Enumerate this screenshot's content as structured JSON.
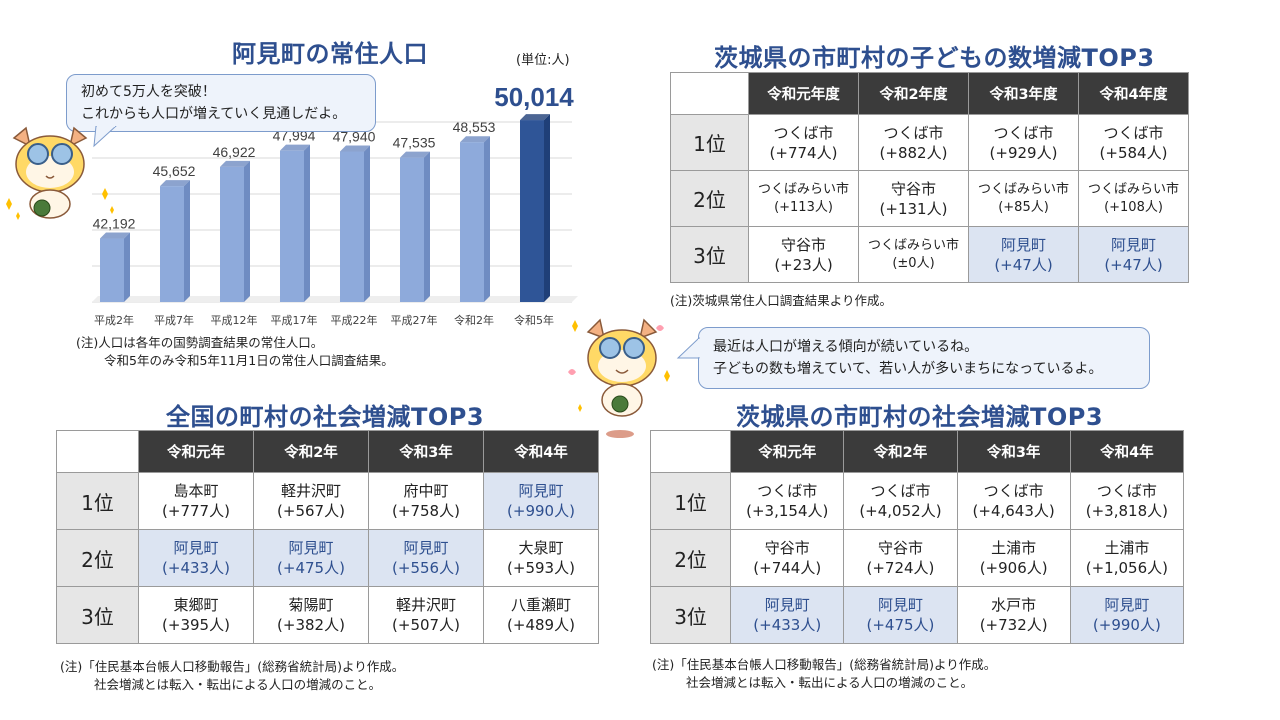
{
  "chart_data": {
    "type": "bar",
    "title": "阿見町の常住人口",
    "unit": "(単位:人)",
    "categories": [
      "平成2年",
      "平成7年",
      "平成12年",
      "平成17年",
      "平成22年",
      "平成27年",
      "令和2年",
      "令和5年"
    ],
    "values": [
      42192,
      45652,
      46922,
      47994,
      47940,
      47535,
      48553,
      50014
    ],
    "value_labels": [
      "42,192",
      "45,652",
      "46,922",
      "47,994",
      "47,940",
      "47,535",
      "48,553",
      "50,014"
    ],
    "highlight_index": 7,
    "colors": {
      "bar": "#8eaadb",
      "bar_side": "#6f8cc2",
      "highlight": "#2f5597",
      "highlight_side": "#1f3f78",
      "grid": "#d9d9d9"
    },
    "ylim": [
      38000,
      52000
    ],
    "notes": [
      "(注)人口は各年の国勢調査結果の常住人口。",
      "令和5年のみ令和5年11月1日の常住人口調査結果。"
    ]
  },
  "bubble1": {
    "line1": "初めて5万人を突破！",
    "line2": "これからも人口が増えていく見通しだよ。"
  },
  "bubble2": {
    "line1": "最近は人口が増える傾向が続いているね。",
    "line2": "子どもの数も増えていて、若い人が多いまちになっているよ。"
  },
  "table_children": {
    "title": "茨城県の市町村の子どもの数増減TOP3",
    "headers": [
      "令和元年度",
      "令和2年度",
      "令和3年度",
      "令和4年度"
    ],
    "rows": [
      {
        "rank": "1位",
        "cells": [
          [
            "つくば市",
            "(+774人)",
            false,
            false
          ],
          [
            "つくば市",
            "(+882人)",
            false,
            false
          ],
          [
            "つくば市",
            "(+929人)",
            false,
            false
          ],
          [
            "つくば市",
            "(+584人)",
            false,
            false
          ]
        ]
      },
      {
        "rank": "2位",
        "cells": [
          [
            "つくばみらい市",
            "(+113人)",
            false,
            true
          ],
          [
            "守谷市",
            "(+131人)",
            false,
            false
          ],
          [
            "つくばみらい市",
            "(+85人)",
            false,
            true
          ],
          [
            "つくばみらい市",
            "(+108人)",
            false,
            true
          ]
        ]
      },
      {
        "rank": "3位",
        "cells": [
          [
            "守谷市",
            "(+23人)",
            false,
            false
          ],
          [
            "つくばみらい市",
            "(±0人)",
            false,
            true
          ],
          [
            "阿見町",
            "(+47人)",
            true,
            false
          ],
          [
            "阿見町",
            "(+47人)",
            true,
            false
          ]
        ]
      }
    ],
    "note": "(注)茨城県常住人口調査結果より作成。"
  },
  "table_national": {
    "title": "全国の町村の社会増減TOP3",
    "headers": [
      "令和元年",
      "令和2年",
      "令和3年",
      "令和4年"
    ],
    "rows": [
      {
        "rank": "1位",
        "cells": [
          [
            "島本町",
            "(+777人)",
            false,
            false
          ],
          [
            "軽井沢町",
            "(+567人)",
            false,
            false
          ],
          [
            "府中町",
            "(+758人)",
            false,
            false
          ],
          [
            "阿見町",
            "(+990人)",
            true,
            false
          ]
        ]
      },
      {
        "rank": "2位",
        "cells": [
          [
            "阿見町",
            "(+433人)",
            true,
            false
          ],
          [
            "阿見町",
            "(+475人)",
            true,
            false
          ],
          [
            "阿見町",
            "(+556人)",
            true,
            false
          ],
          [
            "大泉町",
            "(+593人)",
            false,
            false
          ]
        ]
      },
      {
        "rank": "3位",
        "cells": [
          [
            "東郷町",
            "(+395人)",
            false,
            false
          ],
          [
            "菊陽町",
            "(+382人)",
            false,
            false
          ],
          [
            "軽井沢町",
            "(+507人)",
            false,
            false
          ],
          [
            "八重瀬町",
            "(+489人)",
            false,
            false
          ]
        ]
      }
    ],
    "note1": "(注)「住民基本台帳人口移動報告」(総務省統計局)より作成。",
    "note2": "社会増減とは転入・転出による人口の増減のこと。"
  },
  "table_ibaraki": {
    "title": "茨城県の市町村の社会増減TOP3",
    "headers": [
      "令和元年",
      "令和2年",
      "令和3年",
      "令和4年"
    ],
    "rows": [
      {
        "rank": "1位",
        "cells": [
          [
            "つくば市",
            "(+3,154人)",
            false,
            false
          ],
          [
            "つくば市",
            "(+4,052人)",
            false,
            false
          ],
          [
            "つくば市",
            "(+4,643人)",
            false,
            false
          ],
          [
            "つくば市",
            "(+3,818人)",
            false,
            false
          ]
        ]
      },
      {
        "rank": "2位",
        "cells": [
          [
            "守谷市",
            "(+744人)",
            false,
            false
          ],
          [
            "守谷市",
            "(+724人)",
            false,
            false
          ],
          [
            "土浦市",
            "(+906人)",
            false,
            false
          ],
          [
            "土浦市",
            "(+1,056人)",
            false,
            false
          ]
        ]
      },
      {
        "rank": "3位",
        "cells": [
          [
            "阿見町",
            "(+433人)",
            true,
            false
          ],
          [
            "阿見町",
            "(+475人)",
            true,
            false
          ],
          [
            "水戸市",
            "(+732人)",
            false,
            false
          ],
          [
            "阿見町",
            "(+990人)",
            true,
            false
          ]
        ]
      }
    ],
    "note1": "(注)「住民基本台帳人口移動報告」(総務省統計局)より作成。",
    "note2": "社会増減とは転入・転出による人口の増減のこと。"
  }
}
